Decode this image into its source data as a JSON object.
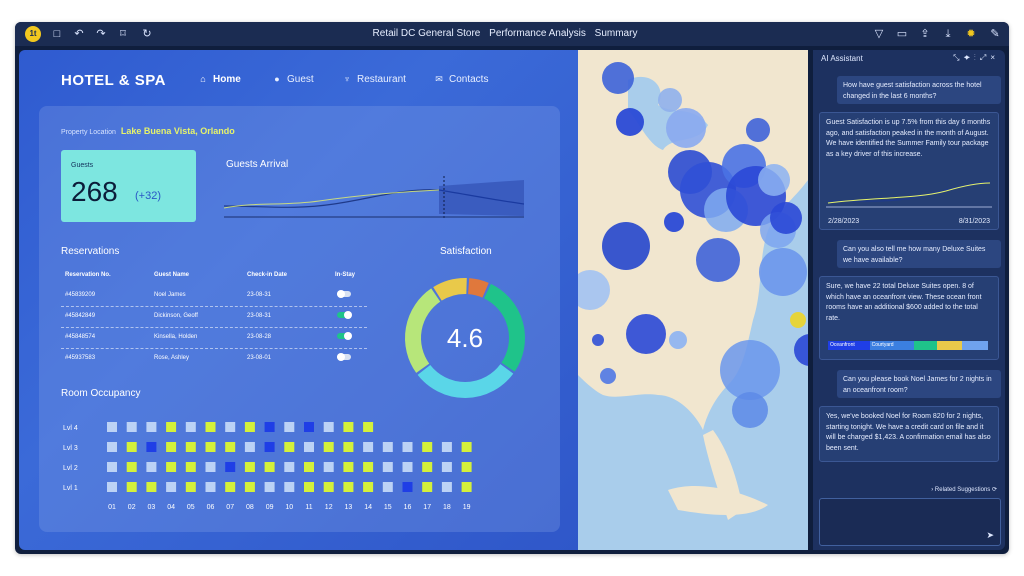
{
  "toolbar": {
    "title_parts": [
      "Retail DC General Store",
      "Performance Analysis",
      "Summary"
    ]
  },
  "brand": "HOTEL & SPA",
  "nav": [
    {
      "label": "Home",
      "icon": "home-icon",
      "active": true
    },
    {
      "label": "Guest",
      "icon": "person-icon",
      "active": false
    },
    {
      "label": "Restaurant",
      "icon": "fork-knife-icon",
      "active": false
    },
    {
      "label": "Contacts",
      "icon": "mail-icon",
      "active": false
    }
  ],
  "location": {
    "label": "Property Location",
    "value": "Lake Buena Vista, Orlando"
  },
  "guests": {
    "label": "Guests",
    "value": "268",
    "delta": "(+32)"
  },
  "arrival": {
    "title": "Guests Arrival"
  },
  "reservations": {
    "title": "Reservations",
    "columns": [
      "Reservation No.",
      "Guest Name",
      "Check-in Date",
      "In-Stay"
    ],
    "rows": [
      {
        "no": "#45839209",
        "name": "Noel James",
        "date": "23-08-31",
        "instay": false
      },
      {
        "no": "#45842849",
        "name": "Dickinson, Geoff",
        "date": "23-08-31",
        "instay": true
      },
      {
        "no": "#45848574",
        "name": "Kinsella, Holden",
        "date": "23-08-28",
        "instay": true
      },
      {
        "no": "#45937583",
        "name": "Rose, Ashley",
        "date": "23-08-01",
        "instay": false
      }
    ]
  },
  "satisfaction": {
    "title": "Satisfaction",
    "value": "4.6",
    "segments": [
      {
        "value": 6,
        "color": "#e0783c"
      },
      {
        "value": 28,
        "color": "#1fc38a"
      },
      {
        "value": 30,
        "color": "#5ad6e8"
      },
      {
        "value": 26,
        "color": "#b7e67a"
      },
      {
        "value": 10,
        "color": "#e9c94a"
      }
    ]
  },
  "occupancy": {
    "title": "Room Occupancy",
    "levels": [
      "Lvl 4",
      "Lvl 3",
      "Lvl 2",
      "Lvl 1"
    ],
    "rooms": [
      "01",
      "02",
      "03",
      "04",
      "05",
      "06",
      "07",
      "08",
      "09",
      "10",
      "11",
      "12",
      "13",
      "14",
      "15",
      "16",
      "17",
      "18",
      "19"
    ],
    "legend_colors": {
      "available": "#d4f13a",
      "occupied": "#bcd2f5",
      "reserved": "#1f3ee6"
    },
    "grid": [
      [
        "o",
        "o",
        "o",
        "a",
        "o",
        "a",
        "o",
        "a",
        "r",
        "o",
        "r",
        "o",
        "a",
        "a",
        "e",
        "e",
        "e",
        "e",
        "e"
      ],
      [
        "o",
        "a",
        "r",
        "a",
        "a",
        "a",
        "a",
        "o",
        "r",
        "a",
        "o",
        "a",
        "a",
        "o",
        "o",
        "o",
        "a",
        "o",
        "a"
      ],
      [
        "o",
        "a",
        "o",
        "a",
        "a",
        "o",
        "r",
        "a",
        "a",
        "o",
        "a",
        "o",
        "a",
        "a",
        "o",
        "o",
        "a",
        "o",
        "a"
      ],
      [
        "o",
        "a",
        "a",
        "o",
        "a",
        "o",
        "a",
        "a",
        "o",
        "o",
        "a",
        "a",
        "a",
        "a",
        "o",
        "r",
        "a",
        "o",
        "a"
      ]
    ]
  },
  "ai": {
    "title": "AI Assistant",
    "messages": [
      {
        "role": "user",
        "text": "How have guest satisfaction across the hotel changed in the last 6 months?"
      },
      {
        "role": "bot",
        "text": "Guest Satisfaction is up 7.5% from this day 6 months ago, and satisfaction peaked in the month of August. We have identified the Summer Family tour package as a key driver of this increase.",
        "chart_start": "2/28/2023",
        "chart_end": "8/31/2023"
      },
      {
        "role": "user",
        "text": "Can you also tell me how many Deluxe Suites we have available?"
      },
      {
        "role": "bot",
        "text": "Sure, we have 22 total Deluxe Suites open. 8 of which have an oceanfront view. These ocean front rooms have an additional $600 added to the total rate.",
        "bar_labels": [
          "Oceanfront",
          "Courtyard"
        ]
      },
      {
        "role": "user",
        "text": "Can you please book Noel James for 2 nights in an oceanfront room?"
      },
      {
        "role": "bot",
        "text": "Yes, we've booked Noel for Room 820 for 2 nights, starting tonight. We have a credit card on file and it will be charged $1,423. A confirmation email has also been sent."
      }
    ],
    "related_suggestions": "Related Suggestions"
  },
  "colors": {
    "accent_yellow": "#e6f36a",
    "panel_blue": "#2f5bd0",
    "ai_bg": "#1d3160"
  }
}
